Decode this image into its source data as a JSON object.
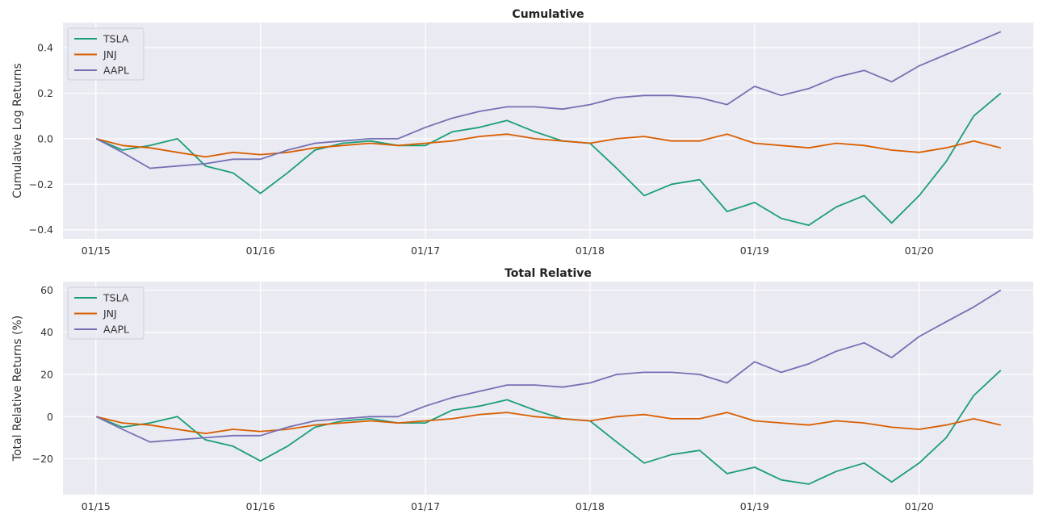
{
  "colors": {
    "TSLA": "#1b9e77",
    "JNJ": "#d95f02",
    "AAPL": "#7570b3",
    "panel_bg": "#eaeaf2",
    "grid": "#ffffff"
  },
  "chart_data": [
    {
      "type": "line",
      "title": "Cumulative",
      "xlabel": "",
      "ylabel": "Cumulative Log Returns",
      "x_tick_labels": [
        "01/15",
        "01/16",
        "01/17",
        "01/18",
        "01/19",
        "01/20"
      ],
      "x_range": [
        "2014-10-20",
        "2020-09-10"
      ],
      "y_ticks": [
        -0.4,
        -0.2,
        0.0,
        0.2,
        0.4
      ],
      "y_tick_labels": [
        "−0.4",
        "−0.2",
        "0.0",
        "0.2",
        "0.4"
      ],
      "ylim": [
        -0.44,
        0.51
      ],
      "grid": true,
      "legend_position": "top-left",
      "x": [
        "2015-01-02",
        "2015-03-01",
        "2015-05-01",
        "2015-07-01",
        "2015-09-01",
        "2015-11-01",
        "2016-01-01",
        "2016-03-01",
        "2016-05-01",
        "2016-07-01",
        "2016-09-01",
        "2016-11-01",
        "2017-01-01",
        "2017-03-01",
        "2017-05-01",
        "2017-07-01",
        "2017-09-01",
        "2017-11-01",
        "2018-01-01",
        "2018-03-01",
        "2018-05-01",
        "2018-07-01",
        "2018-09-01",
        "2018-11-01",
        "2019-01-01",
        "2019-03-01",
        "2019-05-01",
        "2019-07-01",
        "2019-09-01",
        "2019-11-01",
        "2020-01-01",
        "2020-03-01",
        "2020-05-01",
        "2020-06-30"
      ],
      "series": [
        {
          "name": "TSLA",
          "values": [
            0.0,
            -0.05,
            -0.03,
            0.0,
            -0.12,
            -0.15,
            -0.24,
            -0.15,
            -0.05,
            -0.02,
            -0.01,
            -0.03,
            -0.03,
            0.03,
            0.05,
            0.08,
            0.03,
            -0.01,
            -0.02,
            -0.13,
            -0.25,
            -0.2,
            -0.18,
            -0.32,
            -0.28,
            -0.35,
            -0.38,
            -0.3,
            -0.25,
            -0.37,
            -0.25,
            -0.1,
            0.1,
            0.2
          ]
        },
        {
          "name": "JNJ",
          "values": [
            0.0,
            -0.03,
            -0.04,
            -0.06,
            -0.08,
            -0.06,
            -0.07,
            -0.06,
            -0.04,
            -0.03,
            -0.02,
            -0.03,
            -0.02,
            -0.01,
            0.01,
            0.02,
            0.0,
            -0.01,
            -0.02,
            0.0,
            0.01,
            -0.01,
            -0.01,
            0.02,
            -0.02,
            -0.03,
            -0.04,
            -0.02,
            -0.03,
            -0.05,
            -0.06,
            -0.04,
            -0.01,
            -0.04
          ]
        },
        {
          "name": "AAPL",
          "values": [
            0.0,
            -0.06,
            -0.13,
            -0.12,
            -0.11,
            -0.09,
            -0.09,
            -0.05,
            -0.02,
            -0.01,
            0.0,
            0.0,
            0.05,
            0.09,
            0.12,
            0.14,
            0.14,
            0.13,
            0.15,
            0.18,
            0.19,
            0.19,
            0.18,
            0.15,
            0.23,
            0.19,
            0.22,
            0.27,
            0.3,
            0.25,
            0.32,
            0.37,
            0.42,
            0.47
          ]
        }
      ]
    },
    {
      "type": "line",
      "title": "Total Relative",
      "xlabel": "",
      "ylabel": "Total Relative Returns (%)",
      "x_tick_labels": [
        "01/15",
        "01/16",
        "01/17",
        "01/18",
        "01/19",
        "01/20"
      ],
      "x_range": [
        "2014-10-20",
        "2020-09-10"
      ],
      "y_ticks": [
        -20,
        0,
        20,
        40,
        60
      ],
      "y_tick_labels": [
        "−20",
        "0",
        "20",
        "40",
        "60"
      ],
      "ylim": [
        -37,
        64
      ],
      "grid": true,
      "legend_position": "top-left",
      "x": [
        "2015-01-02",
        "2015-03-01",
        "2015-05-01",
        "2015-07-01",
        "2015-09-01",
        "2015-11-01",
        "2016-01-01",
        "2016-03-01",
        "2016-05-01",
        "2016-07-01",
        "2016-09-01",
        "2016-11-01",
        "2017-01-01",
        "2017-03-01",
        "2017-05-01",
        "2017-07-01",
        "2017-09-01",
        "2017-11-01",
        "2018-01-01",
        "2018-03-01",
        "2018-05-01",
        "2018-07-01",
        "2018-09-01",
        "2018-11-01",
        "2019-01-01",
        "2019-03-01",
        "2019-05-01",
        "2019-07-01",
        "2019-09-01",
        "2019-11-01",
        "2020-01-01",
        "2020-03-01",
        "2020-05-01",
        "2020-06-30"
      ],
      "series": [
        {
          "name": "TSLA",
          "values": [
            0.0,
            -5.0,
            -3.0,
            0.0,
            -11.0,
            -14.0,
            -21.0,
            -14.0,
            -5.0,
            -2.0,
            -1.0,
            -3.0,
            -3.0,
            3.0,
            5.0,
            8.0,
            3.0,
            -1.0,
            -2.0,
            -12.0,
            -22.0,
            -18.0,
            -16.0,
            -27.0,
            -24.0,
            -30.0,
            -32.0,
            -26.0,
            -22.0,
            -31.0,
            -22.0,
            -10.0,
            10.0,
            22.0
          ]
        },
        {
          "name": "JNJ",
          "values": [
            0.0,
            -3.0,
            -4.0,
            -6.0,
            -8.0,
            -6.0,
            -7.0,
            -6.0,
            -4.0,
            -3.0,
            -2.0,
            -3.0,
            -2.0,
            -1.0,
            1.0,
            2.0,
            0.0,
            -1.0,
            -2.0,
            0.0,
            1.0,
            -1.0,
            -1.0,
            2.0,
            -2.0,
            -3.0,
            -4.0,
            -2.0,
            -3.0,
            -5.0,
            -6.0,
            -4.0,
            -1.0,
            -4.0
          ]
        },
        {
          "name": "AAPL",
          "values": [
            0.0,
            -6.0,
            -12.0,
            -11.0,
            -10.0,
            -9.0,
            -9.0,
            -5.0,
            -2.0,
            -1.0,
            0.0,
            0.0,
            5.0,
            9.0,
            12.0,
            15.0,
            15.0,
            14.0,
            16.0,
            20.0,
            21.0,
            21.0,
            20.0,
            16.0,
            26.0,
            21.0,
            25.0,
            31.0,
            35.0,
            28.0,
            38.0,
            45.0,
            52.0,
            60.0
          ]
        }
      ]
    }
  ]
}
